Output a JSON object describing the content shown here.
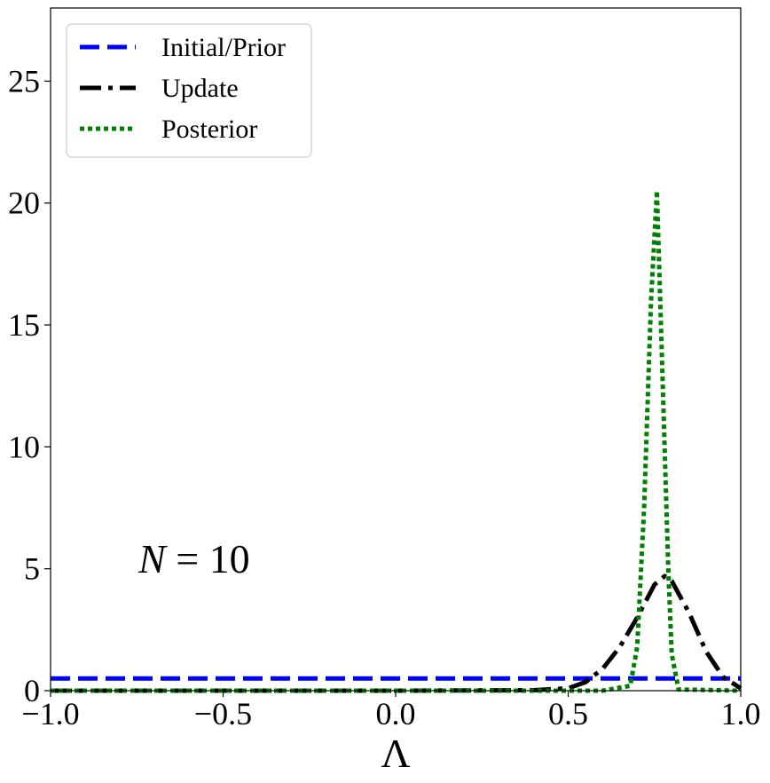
{
  "chart_data": {
    "type": "line",
    "xlabel": "Λ",
    "ylabel": "",
    "xlim": [
      -1.0,
      1.0
    ],
    "ylim": [
      0,
      28
    ],
    "xticks": [
      -1.0,
      -0.5,
      0.0,
      0.5,
      1.0
    ],
    "xtick_labels": [
      "−1.0",
      "−0.5",
      "0.0",
      "0.5",
      "1.0"
    ],
    "yticks": [
      0,
      5,
      10,
      15,
      20,
      25
    ],
    "ytick_labels": [
      "0",
      "5",
      "10",
      "15",
      "20",
      "25"
    ],
    "grid": false,
    "legend_position": "top-left",
    "annotation": {
      "var": "N",
      "rest": " = 10",
      "x": -0.75,
      "y": 5.0
    },
    "series": [
      {
        "name": "Initial/Prior",
        "color": "#0000ff",
        "style": "dashed",
        "x": [
          -1.0,
          1.0
        ],
        "y": [
          0.5,
          0.5
        ]
      },
      {
        "name": "Update",
        "color": "#000000",
        "style": "dashdot",
        "x": [
          -1.0,
          -0.5,
          0.0,
          0.4,
          0.5,
          0.55,
          0.6,
          0.65,
          0.7,
          0.75,
          0.78,
          0.8,
          0.85,
          0.9,
          0.95,
          1.0
        ],
        "y": [
          0.0,
          0.0,
          0.0,
          0.02,
          0.1,
          0.35,
          0.9,
          1.8,
          3.0,
          4.35,
          4.7,
          4.5,
          3.2,
          1.6,
          0.55,
          0.1
        ]
      },
      {
        "name": "Posterior",
        "color": "#008000",
        "style": "dotted",
        "x": [
          -1.0,
          0.6,
          0.68,
          0.7,
          0.72,
          0.74,
          0.757,
          0.77,
          0.79,
          0.8,
          0.82,
          1.0
        ],
        "y": [
          0.0,
          0.0,
          0.2,
          1.8,
          7.5,
          16.0,
          20.5,
          14.5,
          5.0,
          1.5,
          0.05,
          0.0
        ]
      }
    ]
  }
}
